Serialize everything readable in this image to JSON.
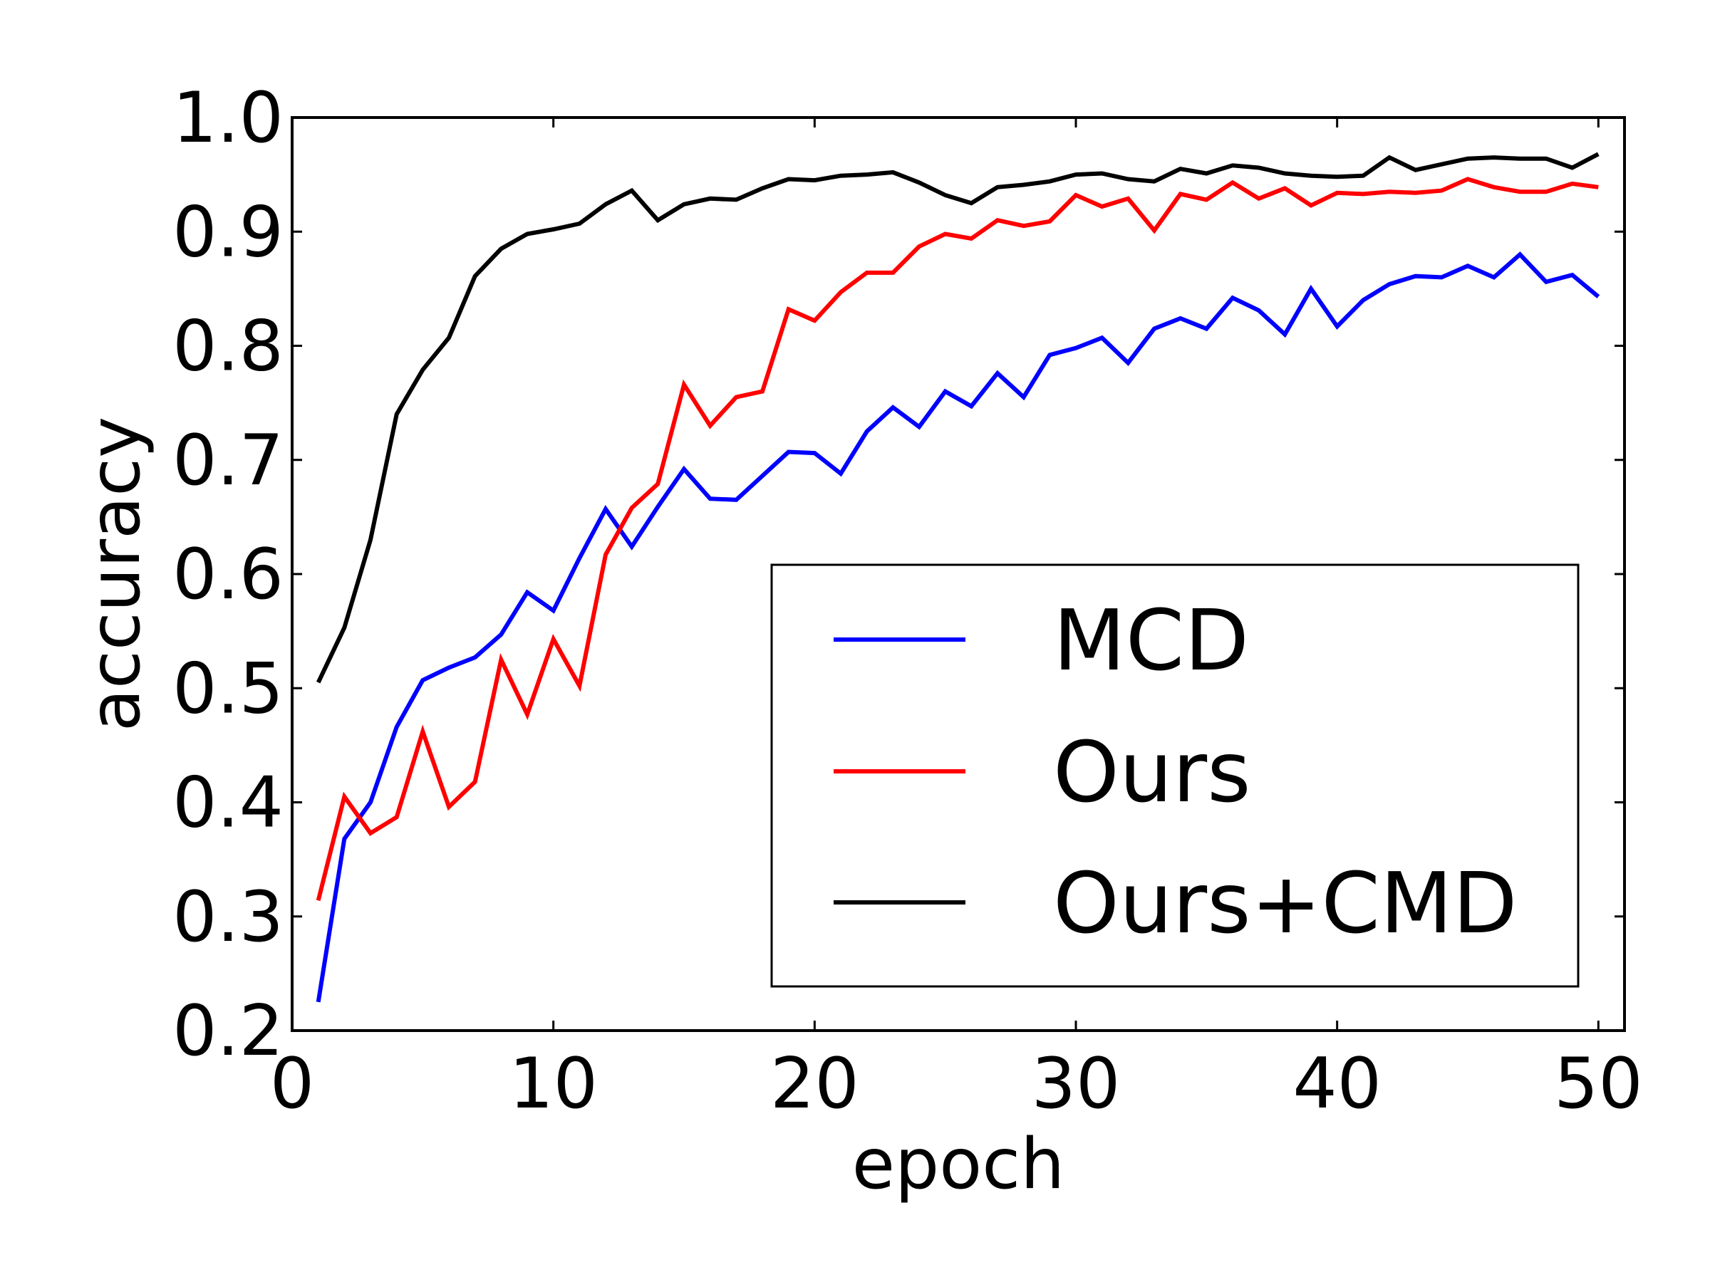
{
  "chart_data": {
    "type": "line",
    "title": "",
    "xlabel": "epoch",
    "ylabel": "accuracy",
    "xlim": [
      0,
      51
    ],
    "ylim": [
      0.2,
      1.0
    ],
    "xticks": [
      0,
      10,
      20,
      30,
      40,
      50
    ],
    "yticks": [
      0.2,
      0.3,
      0.4,
      0.5,
      0.6,
      0.7,
      0.8,
      0.9,
      1.0
    ],
    "xtick_labels": [
      "0",
      "10",
      "20",
      "30",
      "40",
      "50"
    ],
    "ytick_labels": [
      "0.2",
      "0.3",
      "0.4",
      "0.5",
      "0.6",
      "0.7",
      "0.8",
      "0.9",
      "1.0"
    ],
    "grid": false,
    "legend_position": "lower-right",
    "x": [
      1,
      2,
      3,
      4,
      5,
      6,
      7,
      8,
      9,
      10,
      11,
      12,
      13,
      14,
      15,
      16,
      17,
      18,
      19,
      20,
      21,
      22,
      23,
      24,
      25,
      26,
      27,
      28,
      29,
      30,
      31,
      32,
      33,
      34,
      35,
      36,
      37,
      38,
      39,
      40,
      41,
      42,
      43,
      44,
      45,
      46,
      47,
      48,
      49,
      50
    ],
    "series": [
      {
        "name": "MCD",
        "color": "#0000ff",
        "values": [
          0.225,
          0.368,
          0.4,
          0.466,
          0.507,
          0.518,
          0.527,
          0.547,
          0.584,
          0.568,
          0.614,
          0.657,
          0.624,
          0.659,
          0.692,
          0.666,
          0.665,
          0.686,
          0.707,
          0.706,
          0.688,
          0.725,
          0.746,
          0.729,
          0.76,
          0.747,
          0.776,
          0.755,
          0.792,
          0.798,
          0.807,
          0.785,
          0.815,
          0.824,
          0.815,
          0.842,
          0.831,
          0.81,
          0.85,
          0.817,
          0.84,
          0.854,
          0.861,
          0.86,
          0.87,
          0.86,
          0.88,
          0.856,
          0.862,
          0.843
        ]
      },
      {
        "name": "Ours",
        "color": "#ff0000",
        "values": [
          0.314,
          0.405,
          0.373,
          0.387,
          0.462,
          0.396,
          0.418,
          0.525,
          0.477,
          0.543,
          0.502,
          0.617,
          0.658,
          0.679,
          0.766,
          0.73,
          0.755,
          0.76,
          0.832,
          0.822,
          0.847,
          0.864,
          0.864,
          0.887,
          0.898,
          0.894,
          0.91,
          0.905,
          0.909,
          0.932,
          0.922,
          0.929,
          0.901,
          0.933,
          0.928,
          0.943,
          0.929,
          0.938,
          0.923,
          0.934,
          0.933,
          0.935,
          0.934,
          0.936,
          0.946,
          0.939,
          0.935,
          0.935,
          0.942,
          0.939
        ]
      },
      {
        "name": "Ours+CMD",
        "color": "#000000",
        "values": [
          0.505,
          0.553,
          0.63,
          0.74,
          0.779,
          0.807,
          0.861,
          0.885,
          0.898,
          0.902,
          0.907,
          0.924,
          0.936,
          0.91,
          0.924,
          0.929,
          0.928,
          0.938,
          0.946,
          0.945,
          0.949,
          0.95,
          0.952,
          0.943,
          0.932,
          0.925,
          0.939,
          0.941,
          0.944,
          0.95,
          0.951,
          0.946,
          0.944,
          0.955,
          0.951,
          0.958,
          0.956,
          0.951,
          0.949,
          0.948,
          0.949,
          0.965,
          0.954,
          0.959,
          0.964,
          0.965,
          0.964,
          0.964,
          0.956,
          0.968
        ]
      }
    ]
  }
}
